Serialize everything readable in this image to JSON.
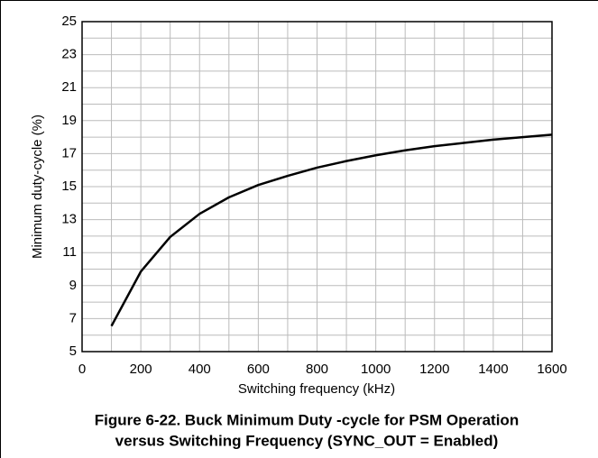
{
  "chart_data": {
    "type": "line",
    "caption": [
      "Figure 6-22. Buck Minimum Duty -cycle for PSM Operation",
      "versus Switching Frequency (SYNC_OUT = Enabled)"
    ],
    "xlabel": "Switching frequency (kHz)",
    "ylabel": "Minimum duty-cycle (%)",
    "x": [
      100,
      200,
      300,
      400,
      500,
      600,
      700,
      800,
      900,
      1000,
      1100,
      1200,
      1300,
      1400,
      1500,
      1600
    ],
    "series": [
      {
        "name": "Minimum duty-cycle",
        "color": "#000000",
        "values": [
          6.55,
          9.85,
          11.95,
          13.35,
          14.35,
          15.1,
          15.65,
          16.15,
          16.55,
          16.9,
          17.2,
          17.45,
          17.65,
          17.85,
          18.0,
          18.15
        ]
      }
    ],
    "xlim": [
      0,
      1600
    ],
    "xticks": [
      0,
      200,
      400,
      600,
      800,
      1000,
      1200,
      1400,
      1600
    ],
    "ylim": [
      5,
      25
    ],
    "yticks": [
      5,
      7,
      9,
      11,
      13,
      15,
      17,
      19,
      21,
      23,
      25
    ],
    "x_minor_ticks": [
      100,
      300,
      500,
      700,
      900,
      1100,
      1300,
      1500
    ],
    "y_minor_ticks": [
      6,
      8,
      10,
      12,
      14,
      16,
      18,
      20,
      22,
      24
    ],
    "grid": true
  }
}
